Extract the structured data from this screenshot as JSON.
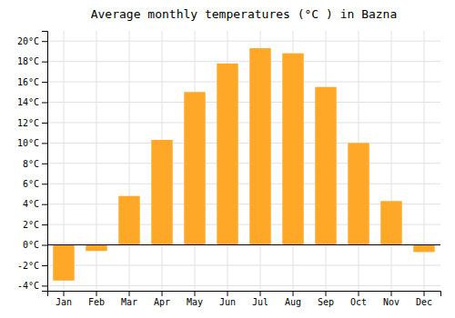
{
  "chart_data": {
    "type": "bar",
    "title": "Average monthly temperatures (°C ) in Bazna",
    "categories": [
      "Jan",
      "Feb",
      "Mar",
      "Apr",
      "May",
      "Jun",
      "Jul",
      "Aug",
      "Sep",
      "Oct",
      "Nov",
      "Dec"
    ],
    "values": [
      -3.5,
      -0.6,
      4.8,
      10.3,
      15.0,
      17.8,
      19.3,
      18.8,
      15.5,
      10.0,
      4.3,
      -0.7
    ],
    "color": "#FFA726",
    "ylim": [
      -4.5,
      21.0
    ],
    "yticks": [
      {
        "value": -4,
        "label": "-4°C"
      },
      {
        "value": -2,
        "label": "-2°C"
      },
      {
        "value": 0,
        "label": "0°C"
      },
      {
        "value": 2,
        "label": "2°C"
      },
      {
        "value": 4,
        "label": "4°C"
      },
      {
        "value": 6,
        "label": "6°C"
      },
      {
        "value": 8,
        "label": "8°C"
      },
      {
        "value": 10,
        "label": "10°C"
      },
      {
        "value": 12,
        "label": "12°C"
      },
      {
        "value": 14,
        "label": "14°C"
      },
      {
        "value": 16,
        "label": "16°C"
      },
      {
        "value": 18,
        "label": "18°C"
      },
      {
        "value": 20,
        "label": "20°C"
      }
    ],
    "grid": true
  }
}
